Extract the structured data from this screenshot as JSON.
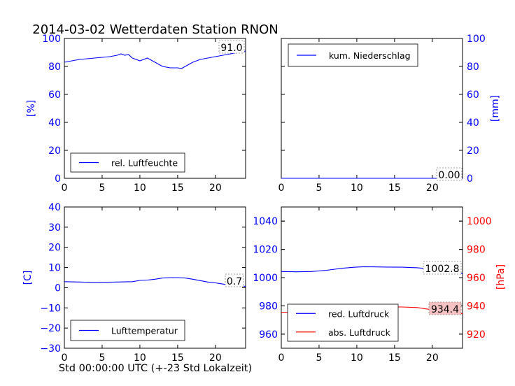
{
  "title": "2014-03-02 Wetterdaten Station RNON",
  "xlabel": "Std 00:00:00 UTC (+-23 Std Lokalzeit)",
  "colors": {
    "blue": "#0000ff",
    "red": "#ff0000",
    "valuebox_red": "#f4c2c2"
  },
  "chart_data": [
    {
      "type": "line",
      "panel": "top-left",
      "ylabel": "[%]",
      "xlim": [
        0,
        24
      ],
      "ylim": [
        0,
        100
      ],
      "xticks": [
        "0",
        "5",
        "10",
        "15",
        "20"
      ],
      "yticks": [
        "0",
        "20",
        "40",
        "60",
        "80",
        "100"
      ],
      "legend": "lower-left",
      "series": [
        {
          "name": "rel. Luftfeuchte",
          "color": "#0000ff",
          "x": [
            0,
            1,
            2,
            3,
            4,
            5,
            6,
            7,
            7.5,
            8,
            8.5,
            9,
            10,
            11,
            12,
            13,
            14,
            15,
            15.5,
            16,
            17,
            18,
            19,
            20,
            21,
            22,
            23,
            24
          ],
          "y": [
            83,
            84,
            85,
            85.5,
            86,
            86.5,
            87,
            88,
            89,
            88,
            88.5,
            86,
            84,
            86,
            83,
            80,
            79,
            79,
            78.5,
            80,
            83,
            85,
            86,
            87,
            88,
            89,
            90,
            91
          ]
        }
      ],
      "value_label": "91.0"
    },
    {
      "type": "line",
      "panel": "top-right",
      "ylabel": "[mm]",
      "xlim": [
        0,
        24
      ],
      "ylim": [
        0,
        100
      ],
      "xticks": [
        "0",
        "5",
        "10",
        "15",
        "20"
      ],
      "yticks": [
        "0",
        "20",
        "40",
        "60",
        "80",
        "100"
      ],
      "legend": "upper-left",
      "series": [
        {
          "name": "kum. Niederschlag",
          "color": "#0000ff",
          "x": [
            0,
            24
          ],
          "y": [
            0,
            0
          ]
        }
      ],
      "value_label": "0.00"
    },
    {
      "type": "line",
      "panel": "bottom-left",
      "ylabel": "[C]",
      "xlim": [
        0,
        24
      ],
      "ylim": [
        -30,
        40
      ],
      "xticks": [
        "0",
        "5",
        "10",
        "15",
        "20"
      ],
      "yticks": [
        "−30",
        "−20",
        "−10",
        "0",
        "10",
        "20",
        "30",
        "40"
      ],
      "legend": "lower-left",
      "series": [
        {
          "name": "Lufttemperatur",
          "color": "#0000ff",
          "x": [
            0,
            2,
            4,
            6,
            8,
            9,
            10,
            11,
            12,
            13,
            14,
            15,
            16,
            17,
            18,
            19,
            20,
            21,
            22,
            23,
            24
          ],
          "y": [
            3,
            2.8,
            2.6,
            2.7,
            2.9,
            3,
            3.6,
            3.8,
            4.2,
            4.8,
            5,
            5,
            4.8,
            4.2,
            3.5,
            2.8,
            2.4,
            1.8,
            1.2,
            0.9,
            0.7
          ]
        }
      ],
      "value_label": "0.7"
    },
    {
      "type": "line",
      "panel": "bottom-right",
      "ylabel_left": "",
      "ylabel_right": "[hPa]",
      "xlim": [
        0,
        24
      ],
      "ylim_left": [
        950,
        1050
      ],
      "ylim_right": [
        910,
        1010
      ],
      "xticks": [
        "0",
        "5",
        "10",
        "15",
        "20"
      ],
      "yticks_left": [
        "960",
        "980",
        "1000",
        "1020",
        "1040"
      ],
      "yticks_right": [
        "920",
        "940",
        "960",
        "980",
        "1000"
      ],
      "legend": "lower-left",
      "series": [
        {
          "name": "red. Luftdruck",
          "color": "#0000ff",
          "axis": "left",
          "x": [
            0,
            2,
            4,
            6,
            8,
            10,
            11,
            12,
            14,
            16,
            18,
            20,
            22,
            24
          ],
          "y": [
            1004.3,
            1004.1,
            1004.3,
            1005.2,
            1006.6,
            1007.5,
            1007.7,
            1007.6,
            1007.5,
            1007.4,
            1007,
            1006,
            1004,
            1002.8
          ]
        },
        {
          "name": "abs. Luftdruck",
          "color": "#ff0000",
          "axis": "right",
          "x": [
            0,
            2,
            4,
            6,
            8,
            10,
            11,
            12,
            14,
            16,
            18,
            20,
            22,
            24
          ],
          "y": [
            935.5,
            935.4,
            935.6,
            936.8,
            938.2,
            939.2,
            939.5,
            939.4,
            939.3,
            939.2,
            938.8,
            937.2,
            935.6,
            934.4
          ]
        }
      ],
      "value_labels": [
        "1002.8",
        "934.4"
      ]
    }
  ]
}
